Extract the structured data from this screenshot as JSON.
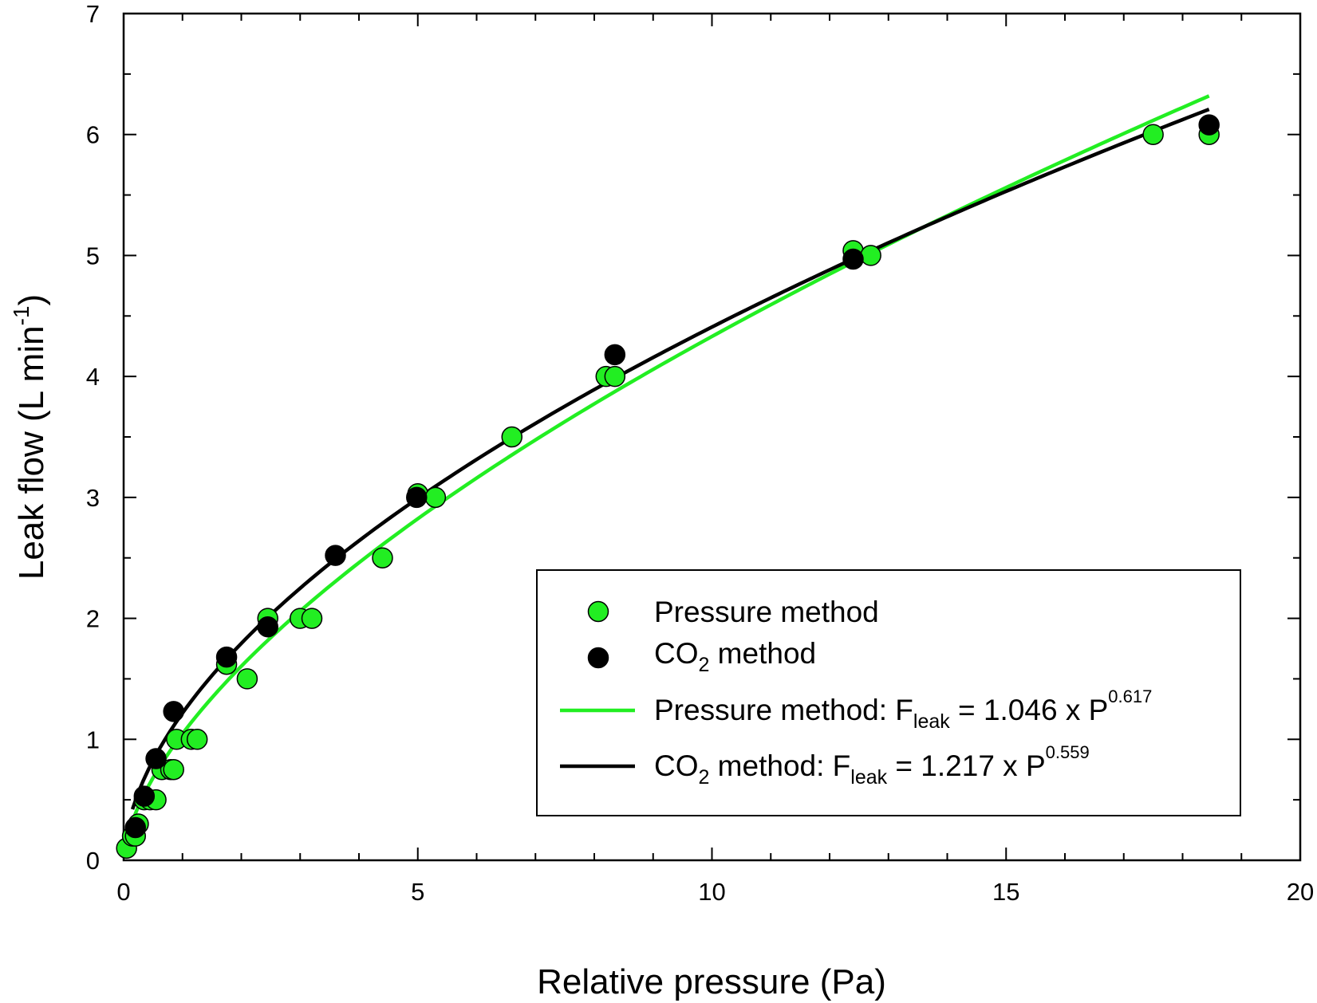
{
  "chart_data": {
    "type": "scatter",
    "xlabel": "Relative pressure (Pa)",
    "ylabel": {
      "main": "Leak flow (L min",
      "sup": "-1",
      "close": ")"
    },
    "xlim": [
      0,
      20
    ],
    "ylim": [
      0,
      7
    ],
    "x_ticks": [
      "0",
      "5",
      "10",
      "15",
      "20"
    ],
    "y_ticks": [
      "0",
      "1",
      "2",
      "3",
      "4",
      "5",
      "6",
      "7"
    ],
    "grid": false,
    "legend_position": "bottom-right",
    "colors": {
      "pressure": "#22ee22",
      "co2": "#000000",
      "axis": "#000000"
    },
    "series": [
      {
        "name": "Pressure method",
        "kind": "points",
        "color": "#22ee22",
        "points": [
          [
            0.05,
            0.1
          ],
          [
            0.15,
            0.2
          ],
          [
            0.2,
            0.2
          ],
          [
            0.25,
            0.3
          ],
          [
            0.35,
            0.5
          ],
          [
            0.45,
            0.5
          ],
          [
            0.55,
            0.5
          ],
          [
            0.65,
            0.75
          ],
          [
            0.8,
            0.75
          ],
          [
            0.85,
            0.75
          ],
          [
            0.9,
            1.0
          ],
          [
            1.15,
            1.0
          ],
          [
            1.25,
            1.0
          ],
          [
            1.75,
            1.62
          ],
          [
            2.1,
            1.5
          ],
          [
            2.45,
            2.0
          ],
          [
            3.0,
            2.0
          ],
          [
            3.2,
            2.0
          ],
          [
            4.4,
            2.5
          ],
          [
            5.0,
            3.03
          ],
          [
            5.3,
            3.0
          ],
          [
            6.6,
            3.5
          ],
          [
            8.2,
            4.0
          ],
          [
            8.35,
            4.0
          ],
          [
            12.4,
            5.04
          ],
          [
            12.7,
            5.0
          ],
          [
            17.5,
            6.0
          ],
          [
            18.45,
            6.0
          ]
        ]
      },
      {
        "name": "CO2 method",
        "name_display": {
          "main": "CO",
          "sub": "2",
          "rest": " method"
        },
        "kind": "points",
        "color": "#000000",
        "points": [
          [
            0.2,
            0.27
          ],
          [
            0.35,
            0.53
          ],
          [
            0.55,
            0.84
          ],
          [
            0.85,
            1.23
          ],
          [
            1.75,
            1.68
          ],
          [
            2.45,
            1.93
          ],
          [
            3.6,
            2.52
          ],
          [
            4.98,
            3.0
          ],
          [
            8.35,
            4.18
          ],
          [
            12.4,
            4.97
          ],
          [
            18.45,
            6.08
          ]
        ]
      },
      {
        "name": "Pressure method: F_leak = 1.046 x P^0.617",
        "name_display": {
          "main": "Pressure method: F",
          "sub": "leak",
          "rest": " = 1.046 x P",
          "sup": "0.617"
        },
        "kind": "fit",
        "color": "#22ee22",
        "coefficient": 1.046,
        "exponent": 0.617,
        "x_range": [
          0.05,
          18.45
        ]
      },
      {
        "name": "CO2 method: F_leak = 1.217 x P^0.559",
        "name_display": {
          "main": "CO",
          "sub": "2",
          "mid": " method: F",
          "sub2": "leak",
          "rest": " = 1.217 x P",
          "sup": "0.559"
        },
        "kind": "fit",
        "color": "#000000",
        "coefficient": 1.217,
        "exponent": 0.559,
        "x_range": [
          0.15,
          18.45
        ]
      }
    ]
  }
}
